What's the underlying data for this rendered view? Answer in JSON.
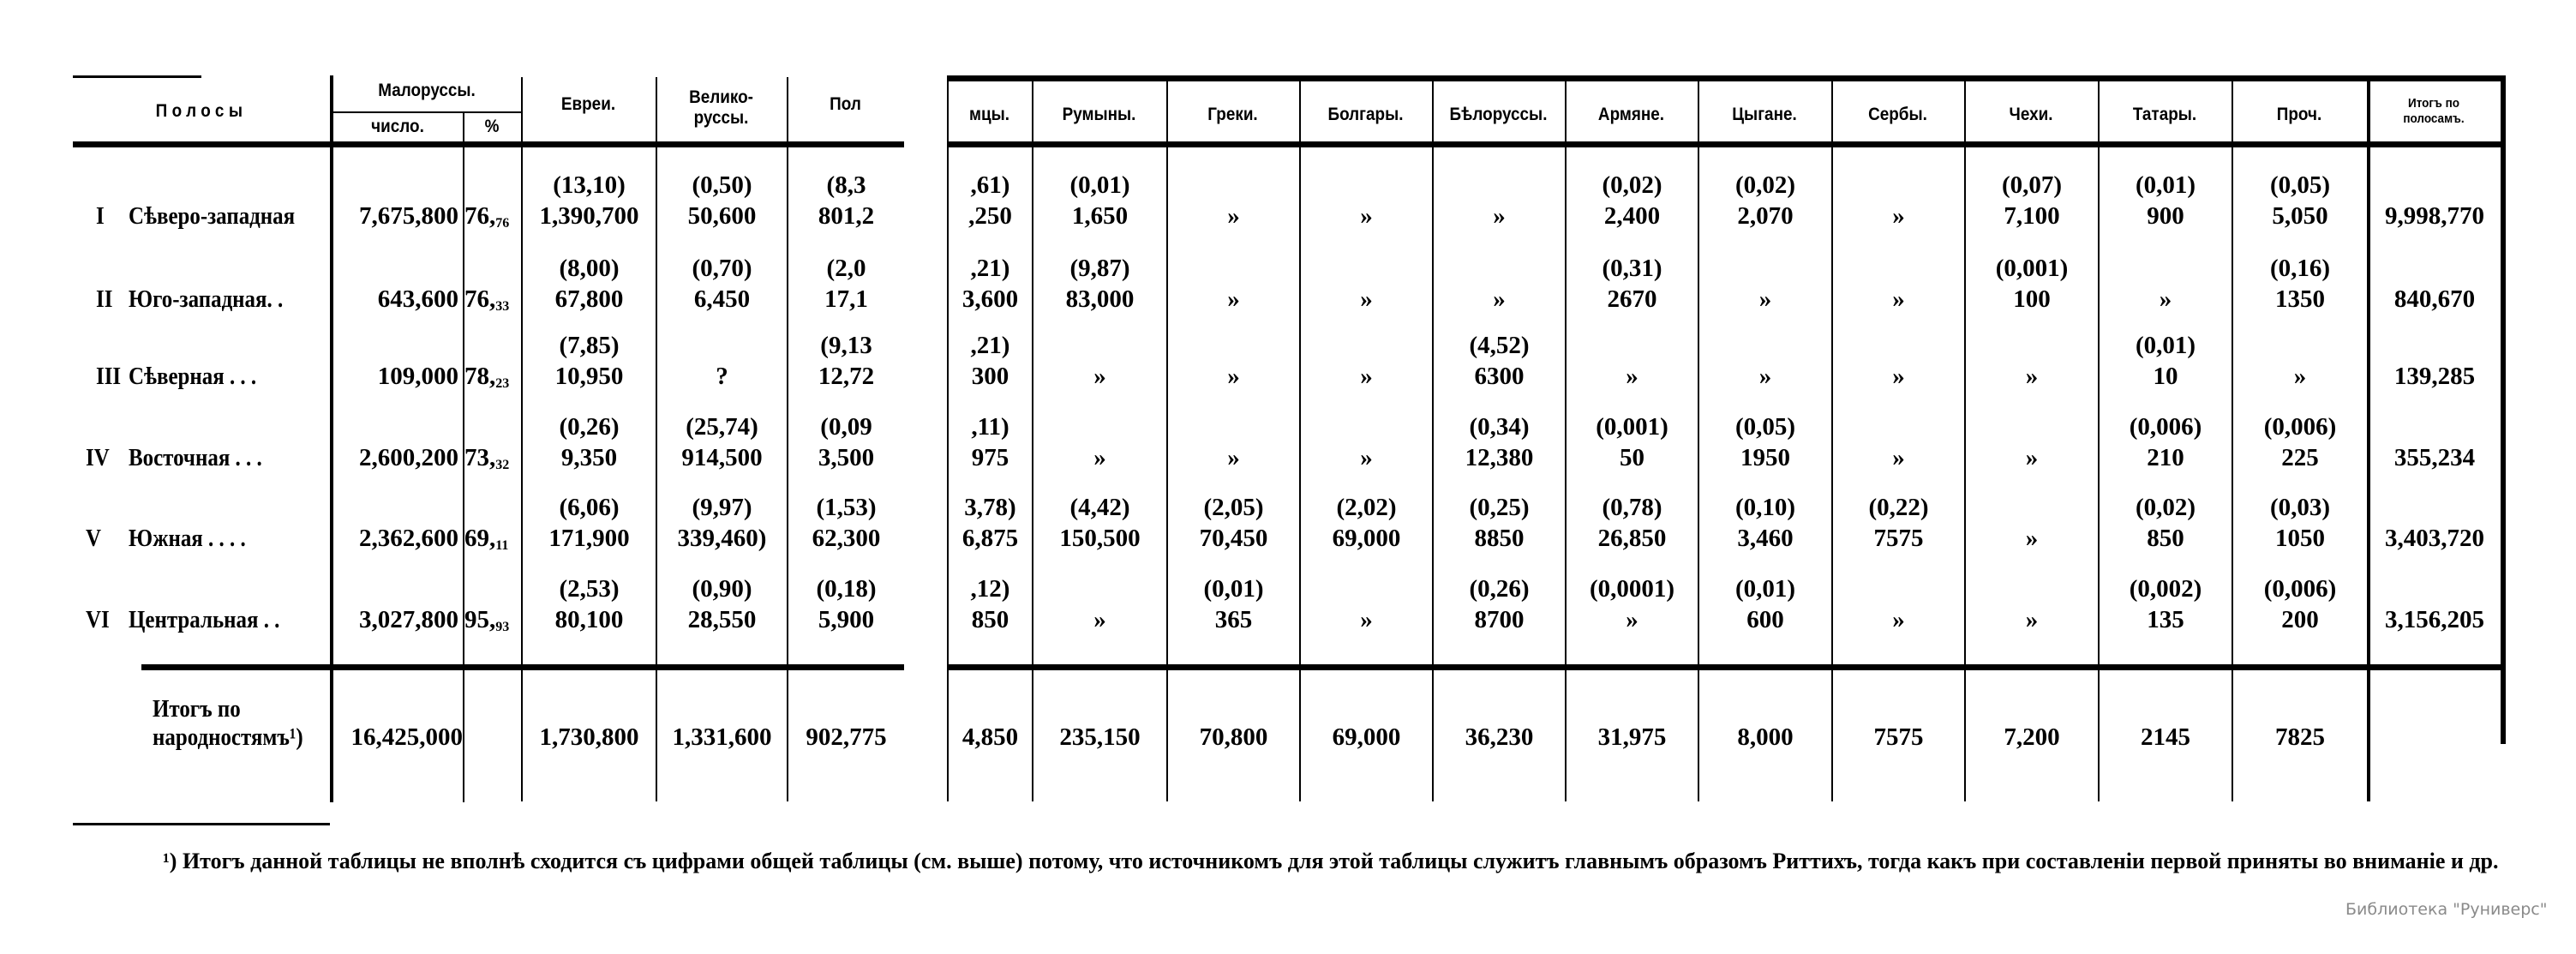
{
  "table": {
    "header": {
      "zones": "Полосы",
      "malorussy": "Малоруссы.",
      "malorussy_num": "число.",
      "malorussy_pct": "%",
      "columns": [
        "Евреи.",
        "Велико-\nруссы.",
        "Пол",
        "мцы.",
        "Румыны.",
        "Греки.",
        "Болгары.",
        "Бѣлоруссы.",
        "Армяне.",
        "Цыгане.",
        "Сербы.",
        "Чехи.",
        "Татары.",
        "Проч.",
        "Итогъ по\nполосамъ."
      ]
    },
    "rows": [
      {
        "num": "I",
        "name": "Сѣверо-западная",
        "count": "7,675,800",
        "pct_int": "76,",
        "pct_frac": "76",
        "cells": [
          {
            "p": "(13,10)",
            "n": "1,390,700"
          },
          {
            "p": "(0,50)",
            "n": "50,600"
          },
          {
            "p": "(8,3",
            "n": "801,2"
          },
          {
            "p": ",61)",
            "n": ",250"
          },
          {
            "p": "(0,01)",
            "n": "1,650"
          },
          {
            "p": "",
            "n": "»"
          },
          {
            "p": "",
            "n": "»"
          },
          {
            "p": "",
            "n": "»"
          },
          {
            "p": "(0,02)",
            "n": "2,400"
          },
          {
            "p": "(0,02)",
            "n": "2,070"
          },
          {
            "p": "",
            "n": "»"
          },
          {
            "p": "(0,07)",
            "n": "7,100"
          },
          {
            "p": "(0,01)",
            "n": "900"
          },
          {
            "p": "(0,05)",
            "n": "5,050"
          },
          {
            "p": "",
            "n": "9,998,770"
          }
        ]
      },
      {
        "num": "II",
        "name": "Юго-западная. .",
        "count": "643,600",
        "pct_int": "76,",
        "pct_frac": "33",
        "cells": [
          {
            "p": "(8,00)",
            "n": "67,800"
          },
          {
            "p": "(0,70)",
            "n": "6,450"
          },
          {
            "p": "(2,0",
            "n": "17,1"
          },
          {
            "p": ",21)",
            "n": "3,600"
          },
          {
            "p": "(9,87)",
            "n": "83,000"
          },
          {
            "p": "",
            "n": "»"
          },
          {
            "p": "",
            "n": "»"
          },
          {
            "p": "",
            "n": "»"
          },
          {
            "p": "(0,31)",
            "n": "2670"
          },
          {
            "p": "",
            "n": "»"
          },
          {
            "p": "",
            "n": "»"
          },
          {
            "p": "(0,001)",
            "n": "100"
          },
          {
            "p": "",
            "n": "»"
          },
          {
            "p": "(0,16)",
            "n": "1350"
          },
          {
            "p": "",
            "n": "840,670"
          }
        ]
      },
      {
        "num": "III",
        "name": "Сѣверная . . .",
        "count": "109,000",
        "pct_int": "78,",
        "pct_frac": "23",
        "cells": [
          {
            "p": "(7,85)",
            "n": "10,950"
          },
          {
            "p": "",
            "n": "?"
          },
          {
            "p": "(9,13",
            "n": "12,72"
          },
          {
            "p": ",21)",
            "n": "300"
          },
          {
            "p": "",
            "n": "»"
          },
          {
            "p": "",
            "n": "»"
          },
          {
            "p": "",
            "n": "»"
          },
          {
            "p": "(4,52)",
            "n": "6300"
          },
          {
            "p": "",
            "n": "»"
          },
          {
            "p": "",
            "n": "»"
          },
          {
            "p": "",
            "n": "»"
          },
          {
            "p": "",
            "n": "»"
          },
          {
            "p": "(0,01)",
            "n": "10"
          },
          {
            "p": "",
            "n": "»"
          },
          {
            "p": "",
            "n": "139,285"
          }
        ]
      },
      {
        "num": "IV",
        "name": "Восточная . . .",
        "count": "2,600,200",
        "pct_int": "73,",
        "pct_frac": "32",
        "cells": [
          {
            "p": "(0,26)",
            "n": "9,350"
          },
          {
            "p": "(25,74)",
            "n": "914,500"
          },
          {
            "p": "(0,09",
            "n": "3,500"
          },
          {
            "p": ",11)",
            "n": "975"
          },
          {
            "p": "",
            "n": "»"
          },
          {
            "p": "",
            "n": "»"
          },
          {
            "p": "",
            "n": "»"
          },
          {
            "p": "(0,34)",
            "n": "12,380"
          },
          {
            "p": "(0,001)",
            "n": "50"
          },
          {
            "p": "(0,05)",
            "n": "1950"
          },
          {
            "p": "",
            "n": "»"
          },
          {
            "p": "",
            "n": "»"
          },
          {
            "p": "(0,006)",
            "n": "210"
          },
          {
            "p": "(0,006)",
            "n": "225"
          },
          {
            "p": "",
            "n": "355,234"
          }
        ]
      },
      {
        "num": "V",
        "name": "Южная . . . .",
        "count": "2,362,600",
        "pct_int": "69,",
        "pct_frac": "11",
        "cells": [
          {
            "p": "(6,06)",
            "n": "171,900"
          },
          {
            "p": "(9,97)",
            "n": "339,460)"
          },
          {
            "p": "(1,53)",
            "n": "62,300"
          },
          {
            "p": "3,78)",
            "n": "6,875"
          },
          {
            "p": "(4,42)",
            "n": "150,500"
          },
          {
            "p": "(2,05)",
            "n": "70,450"
          },
          {
            "p": "(2,02)",
            "n": "69,000"
          },
          {
            "p": "(0,25)",
            "n": "8850"
          },
          {
            "p": "(0,78)",
            "n": "26,850"
          },
          {
            "p": "(0,10)",
            "n": "3,460"
          },
          {
            "p": "(0,22)",
            "n": "7575"
          },
          {
            "p": "",
            "n": "»"
          },
          {
            "p": "(0,02)",
            "n": "850"
          },
          {
            "p": "(0,03)",
            "n": "1050"
          },
          {
            "p": "",
            "n": "3,403,720"
          }
        ]
      },
      {
        "num": "VI",
        "name": "Центральная . .",
        "count": "3,027,800",
        "pct_int": "95,",
        "pct_frac": "93",
        "cells": [
          {
            "p": "(2,53)",
            "n": "80,100"
          },
          {
            "p": "(0,90)",
            "n": "28,550"
          },
          {
            "p": "(0,18)",
            "n": "5,900"
          },
          {
            "p": ",12)",
            "n": "850"
          },
          {
            "p": "",
            "n": "»"
          },
          {
            "p": "(0,01)",
            "n": "365"
          },
          {
            "p": "",
            "n": "»"
          },
          {
            "p": "(0,26)",
            "n": "8700"
          },
          {
            "p": "(0,0001)",
            "n": "»"
          },
          {
            "p": "(0,01)",
            "n": "600"
          },
          {
            "p": "",
            "n": "»"
          },
          {
            "p": "",
            "n": "»"
          },
          {
            "p": "(0,002)",
            "n": "135"
          },
          {
            "p": "(0,006)",
            "n": "200"
          },
          {
            "p": "",
            "n": "3,156,205"
          }
        ]
      }
    ],
    "totals": {
      "label_line1": "Итогъ по",
      "label_line2": "народностямъ¹)",
      "count": "16,425,000",
      "cells": [
        "1,730,800",
        "1,331,600",
        "902,775",
        "4,850",
        "235,150",
        "70,800",
        "69,000",
        "36,230",
        "31,975",
        "8,000",
        "7575",
        "7,200",
        "2145",
        "7825",
        ""
      ]
    }
  },
  "footnote": "¹) Итогъ данной таблицы не вполнѣ сходится съ цифрами общей таблицы (см. выше) потому, что источникомъ для этой таблицы служитъ главнымъ образомъ Риттихъ, тогда какъ при составленіи первой приняты во вниманіе и др.",
  "watermark": "Библиотека \"Руниверс\""
}
